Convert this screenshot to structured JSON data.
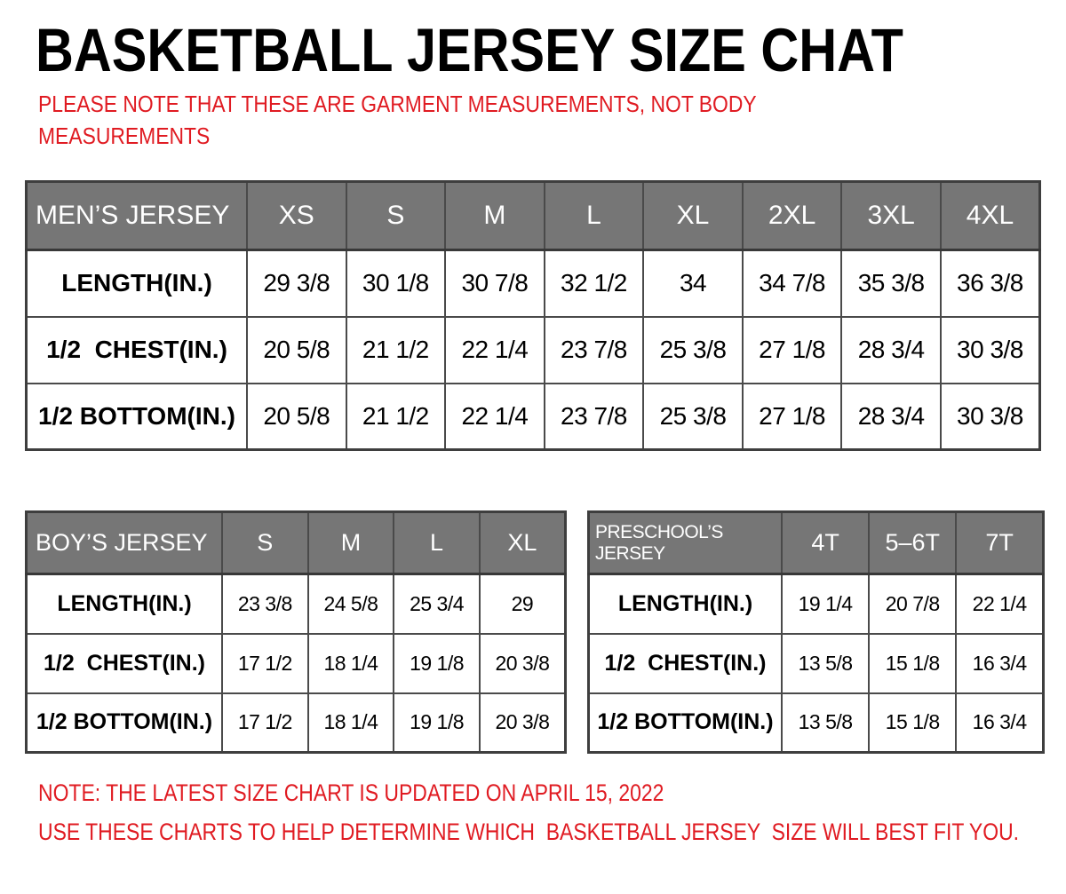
{
  "page": {
    "title": "BASKETBALL JERSEY SIZE CHAT",
    "disclaimer_line1": "PLEASE NOTE THAT THESE ARE GARMENT MEASUREMENTS, NOT BODY",
    "disclaimer_line2": "MEASUREMENTS",
    "footer_note1": "NOTE: THE LATEST SIZE CHART IS UPDATED ON APRIL 15, 2022",
    "footer_note2": "USE THESE CHARTS TO HELP DETERMINE WHICH  BASKETBALL JERSEY  SIZE WILL BEST FIT YOU."
  },
  "colors": {
    "accent_red": "#e01b22",
    "header_gray": "#767676",
    "border_gray": "#4a4a4a",
    "outer_border": "#3e3e3e",
    "header_text": "#ffffff",
    "body_text": "#000000"
  },
  "tables": {
    "mens": {
      "title": "MEN’S JERSEY",
      "sizes": [
        "XS",
        "S",
        "M",
        "L",
        "XL",
        "2XL",
        "3XL",
        "4XL"
      ],
      "rows": [
        {
          "label": "LENGTH(IN.)",
          "values": [
            "29 3/8",
            "30 1/8",
            "30 7/8",
            "32 1/2",
            "34",
            "34 7/8",
            "35 3/8",
            "36 3/8"
          ]
        },
        {
          "label": "1/2  CHEST(IN.)",
          "values": [
            "20 5/8",
            "21 1/2",
            "22 1/4",
            "23 7/8",
            "25 3/8",
            "27 1/8",
            "28 3/4",
            "30 3/8"
          ]
        },
        {
          "label": "1/2 BOTTOM(IN.)",
          "values": [
            "20 5/8",
            "21 1/2",
            "22 1/4",
            "23 7/8",
            "25 3/8",
            "27 1/8",
            "28 3/4",
            "30 3/8"
          ]
        }
      ]
    },
    "boys": {
      "title": "BOY’S JERSEY",
      "sizes": [
        "S",
        "M",
        "L",
        "XL"
      ],
      "rows": [
        {
          "label": "LENGTH(IN.)",
          "values": [
            "23 3/8",
            "24 5/8",
            "25 3/4",
            "29"
          ]
        },
        {
          "label": "1/2  CHEST(IN.)",
          "values": [
            "17 1/2",
            "18 1/4",
            "19 1/8",
            "20 3/8"
          ]
        },
        {
          "label": "1/2 BOTTOM(IN.)",
          "values": [
            "17 1/2",
            "18 1/4",
            "19 1/8",
            "20 3/8"
          ]
        }
      ]
    },
    "preschool": {
      "title": "PRESCHOOL’S JERSEY",
      "sizes": [
        "4T",
        "5–6T",
        "7T"
      ],
      "rows": [
        {
          "label": "LENGTH(IN.)",
          "values": [
            "19 1/4",
            "20 7/8",
            "22 1/4"
          ]
        },
        {
          "label": "1/2  CHEST(IN.)",
          "values": [
            "13 5/8",
            "15 1/8",
            "16 3/4"
          ]
        },
        {
          "label": "1/2 BOTTOM(IN.)",
          "values": [
            "13 5/8",
            "15 1/8",
            "16 3/4"
          ]
        }
      ]
    }
  }
}
